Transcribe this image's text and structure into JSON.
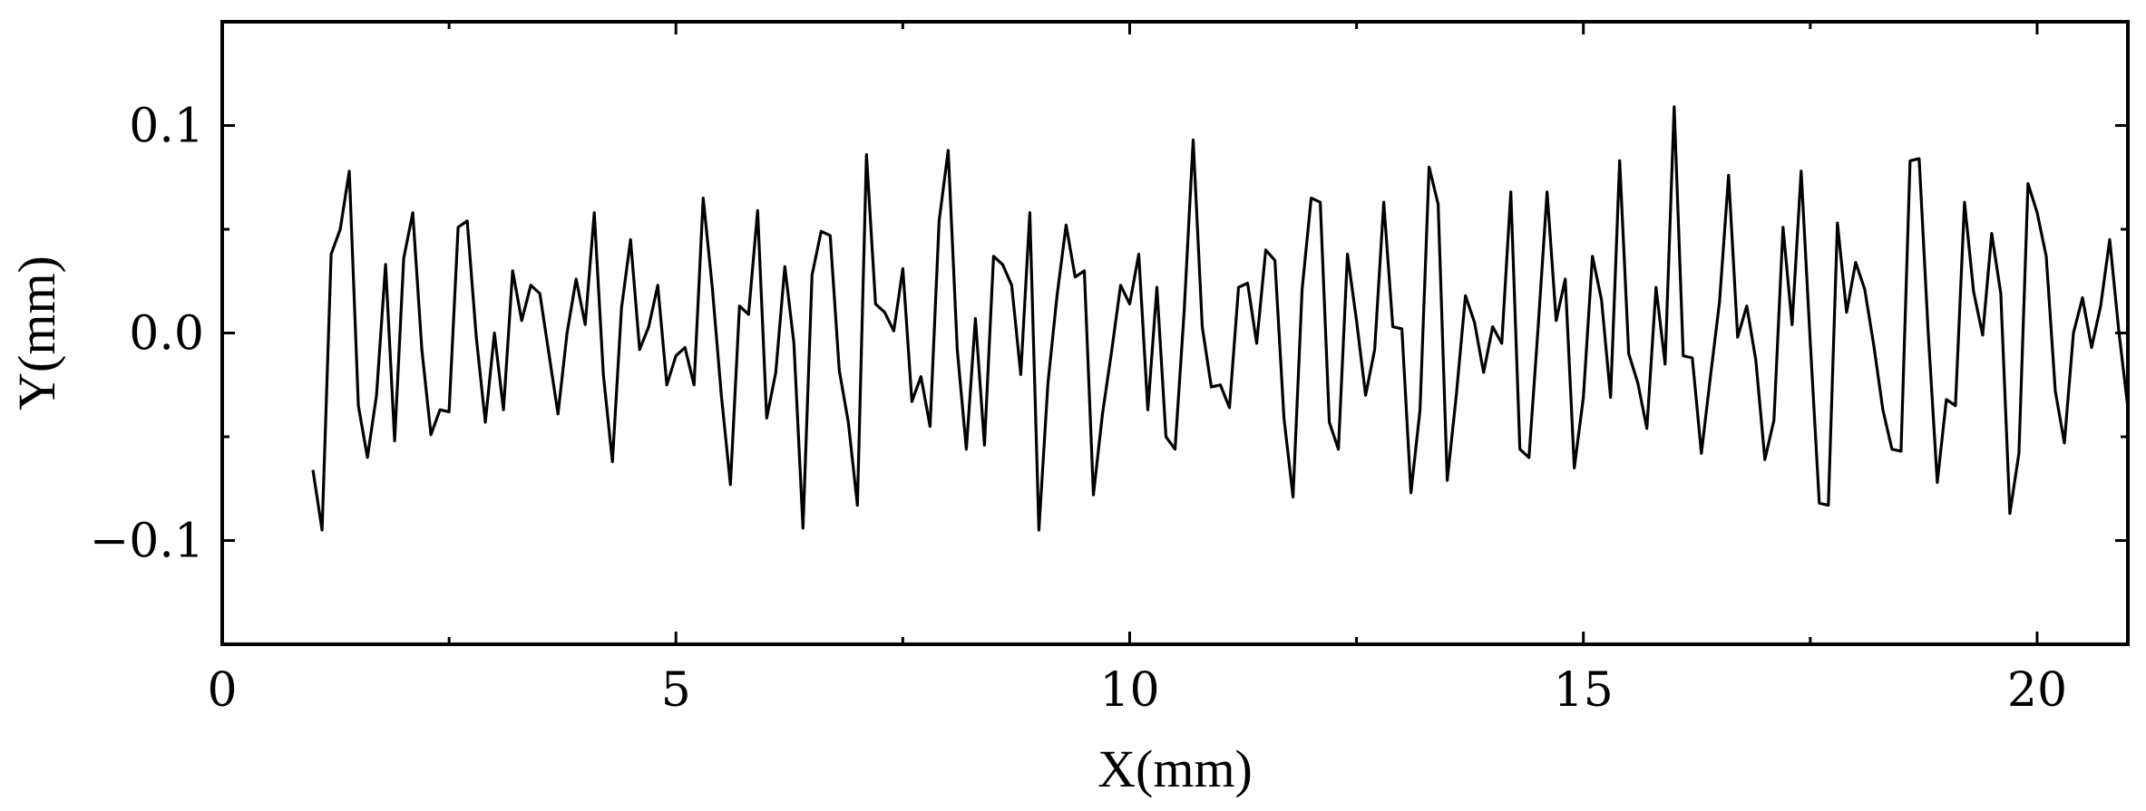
{
  "chart_data": {
    "type": "line",
    "title": "",
    "xlabel": "X(mm)",
    "ylabel": "Y(mm)",
    "xlim": [
      0,
      21
    ],
    "ylim": [
      -0.15,
      0.15
    ],
    "x_ticks": [
      0,
      5,
      10,
      15,
      20
    ],
    "x_tick_labels": [
      "0",
      "5",
      "10",
      "15",
      "20"
    ],
    "y_ticks": [
      0.1,
      0.0,
      -0.1
    ],
    "y_tick_labels": [
      "0.1",
      "0.0",
      "−0.1"
    ],
    "grid": false,
    "legend": "none",
    "series": [
      {
        "color": "#000000",
        "x": [
          1.0,
          1.1,
          1.2,
          1.3,
          1.4,
          1.5,
          1.6,
          1.7,
          1.8,
          1.9,
          2.0,
          2.1,
          2.2,
          2.3,
          2.4,
          2.5,
          2.6,
          2.7,
          2.8,
          2.9,
          3.0,
          3.1,
          3.2,
          3.3,
          3.4,
          3.5,
          3.6,
          3.7,
          3.8,
          3.9,
          4.0,
          4.1,
          4.2,
          4.3,
          4.4,
          4.5,
          4.6,
          4.7,
          4.8,
          4.9,
          5.0,
          5.1,
          5.2,
          5.3,
          5.4,
          5.5,
          5.6,
          5.7,
          5.8,
          5.9,
          6.0,
          6.1,
          6.2,
          6.3,
          6.4,
          6.5,
          6.6,
          6.7,
          6.8,
          6.9,
          7.0,
          7.1,
          7.2,
          7.3,
          7.4,
          7.5,
          7.6,
          7.7,
          7.8,
          7.9,
          8.0,
          8.1,
          8.2,
          8.3,
          8.4,
          8.5,
          8.6,
          8.7,
          8.8,
          8.9,
          9.0,
          9.1,
          9.2,
          9.3,
          9.4,
          9.5,
          9.6,
          9.7,
          9.8,
          9.9,
          10.0,
          10.1,
          10.2,
          10.3,
          10.4,
          10.5,
          10.6,
          10.7,
          10.8,
          10.9,
          11.0,
          11.1,
          11.2,
          11.3,
          11.4,
          11.5,
          11.6,
          11.7,
          11.8,
          11.9,
          12.0,
          12.1,
          12.2,
          12.3,
          12.4,
          12.5,
          12.6,
          12.7,
          12.8,
          12.9,
          13.0,
          13.1,
          13.2,
          13.3,
          13.4,
          13.5,
          13.6,
          13.7,
          13.8,
          13.9,
          14.0,
          14.1,
          14.2,
          14.3,
          14.4,
          14.5,
          14.6,
          14.7,
          14.8,
          14.9,
          15.0,
          15.1,
          15.2,
          15.3,
          15.4,
          15.5,
          15.6,
          15.7,
          15.8,
          15.9,
          16.0,
          16.1,
          16.2,
          16.3,
          16.4,
          16.5,
          16.6,
          16.7,
          16.8,
          16.9,
          17.0,
          17.1,
          17.2,
          17.3,
          17.4,
          17.5,
          17.6,
          17.7,
          17.8,
          17.9,
          18.0,
          18.1,
          18.2,
          18.3,
          18.4,
          18.5,
          18.6,
          18.7,
          18.8,
          18.9,
          19.0,
          19.1,
          19.2,
          19.3,
          19.4,
          19.5,
          19.6,
          19.7,
          19.8,
          19.9,
          20.0,
          20.1,
          20.2,
          20.3,
          20.4,
          20.5,
          20.6,
          20.7,
          20.8,
          20.9,
          21.0
        ],
        "y": [
          -0.066,
          -0.095,
          0.038,
          0.05,
          0.078,
          -0.035,
          -0.06,
          -0.03,
          0.033,
          -0.052,
          0.036,
          0.058,
          -0.008,
          -0.049,
          -0.037,
          -0.038,
          0.051,
          0.054,
          -0.002,
          -0.043,
          0.0,
          -0.037,
          0.03,
          0.006,
          0.023,
          0.019,
          -0.01,
          -0.039,
          0.0,
          0.026,
          0.004,
          0.058,
          -0.02,
          -0.062,
          0.012,
          0.045,
          -0.008,
          0.003,
          0.023,
          -0.025,
          -0.011,
          -0.007,
          -0.025,
          0.065,
          0.022,
          -0.03,
          -0.073,
          0.013,
          0.009,
          0.059,
          -0.041,
          -0.019,
          0.032,
          -0.005,
          -0.094,
          0.028,
          0.049,
          0.047,
          -0.018,
          -0.043,
          -0.083,
          0.086,
          0.014,
          0.01,
          0.001,
          0.031,
          -0.033,
          -0.021,
          -0.045,
          0.054,
          0.088,
          -0.008,
          -0.056,
          0.007,
          -0.054,
          0.037,
          0.033,
          0.023,
          -0.02,
          0.058,
          -0.095,
          -0.024,
          0.018,
          0.052,
          0.027,
          0.03,
          -0.078,
          -0.039,
          -0.009,
          0.023,
          0.014,
          0.038,
          -0.037,
          0.022,
          -0.05,
          -0.056,
          0.01,
          0.093,
          0.003,
          -0.026,
          -0.025,
          -0.036,
          0.022,
          0.024,
          -0.005,
          0.04,
          0.035,
          -0.041,
          -0.079,
          0.021,
          0.065,
          0.063,
          -0.043,
          -0.056,
          0.038,
          0.006,
          -0.03,
          -0.008,
          0.063,
          0.003,
          0.002,
          -0.077,
          -0.037,
          0.08,
          0.062,
          -0.071,
          -0.03,
          0.018,
          0.005,
          -0.019,
          0.003,
          -0.005,
          0.068,
          -0.056,
          -0.06,
          0.002,
          0.068,
          0.006,
          0.026,
          -0.065,
          -0.031,
          0.037,
          0.016,
          -0.031,
          0.083,
          -0.01,
          -0.024,
          -0.046,
          0.022,
          -0.015,
          0.109,
          -0.011,
          -0.012,
          -0.058,
          -0.021,
          0.015,
          0.076,
          -0.002,
          0.013,
          -0.013,
          -0.061,
          -0.042,
          0.051,
          0.004,
          0.078,
          -0.004,
          -0.082,
          -0.083,
          0.053,
          0.01,
          0.034,
          0.021,
          -0.006,
          -0.037,
          -0.056,
          -0.057,
          0.083,
          0.084,
          0.0,
          -0.072,
          -0.032,
          -0.035,
          0.063,
          0.02,
          -0.001,
          0.048,
          0.019,
          -0.087,
          -0.058,
          0.072,
          0.058,
          0.037,
          -0.028,
          -0.053,
          0.0,
          0.017,
          -0.007,
          0.013,
          0.045,
          0.001,
          -0.036
        ]
      }
    ]
  }
}
